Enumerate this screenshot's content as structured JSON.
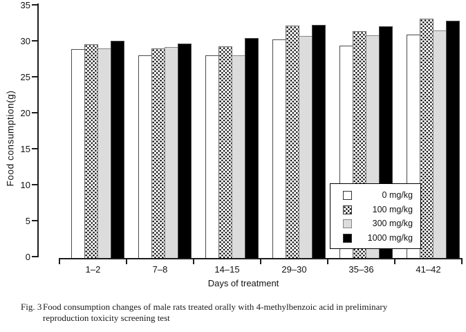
{
  "figure": {
    "caption_label": "Fig. 3",
    "caption_lines": [
      "Food consumption changes of male rats treated orally with 4-methylbenzoic acid in preliminary",
      "reproduction toxicity screening test"
    ]
  },
  "chart_data": {
    "type": "bar",
    "title": "",
    "xlabel": "Days of treatment",
    "ylabel": "Food consumption(g)",
    "ylim": [
      0,
      35
    ],
    "ytick_step": 5,
    "yticks": [
      0,
      5,
      10,
      15,
      20,
      25,
      30,
      35
    ],
    "grid": false,
    "legend_position": "inside-lower-right",
    "categories": [
      "1–2",
      "7–8",
      "14–15",
      "29–30",
      "35–36",
      "41–42"
    ],
    "series": [
      {
        "name": "0 mg/kg",
        "style": "white",
        "values": [
          28.8,
          28.0,
          28.0,
          30.2,
          29.3,
          30.9
        ]
      },
      {
        "name": "100 mg/kg",
        "style": "dotted",
        "values": [
          29.5,
          28.9,
          29.2,
          32.1,
          31.3,
          33.1
        ]
      },
      {
        "name": "300 mg/kg",
        "style": "gray",
        "values": [
          28.9,
          29.1,
          28.0,
          30.7,
          30.8,
          31.4
        ]
      },
      {
        "name": "1000 mg/kg",
        "style": "black",
        "values": [
          30.0,
          29.6,
          30.4,
          32.2,
          32.0,
          32.8
        ]
      }
    ],
    "colors": {
      "bar_white": "#ffffff",
      "bar_gray": "#dcdcdc",
      "bar_black": "#000000",
      "dot_pattern": "#000000",
      "axis": "#1c1c1c"
    }
  }
}
